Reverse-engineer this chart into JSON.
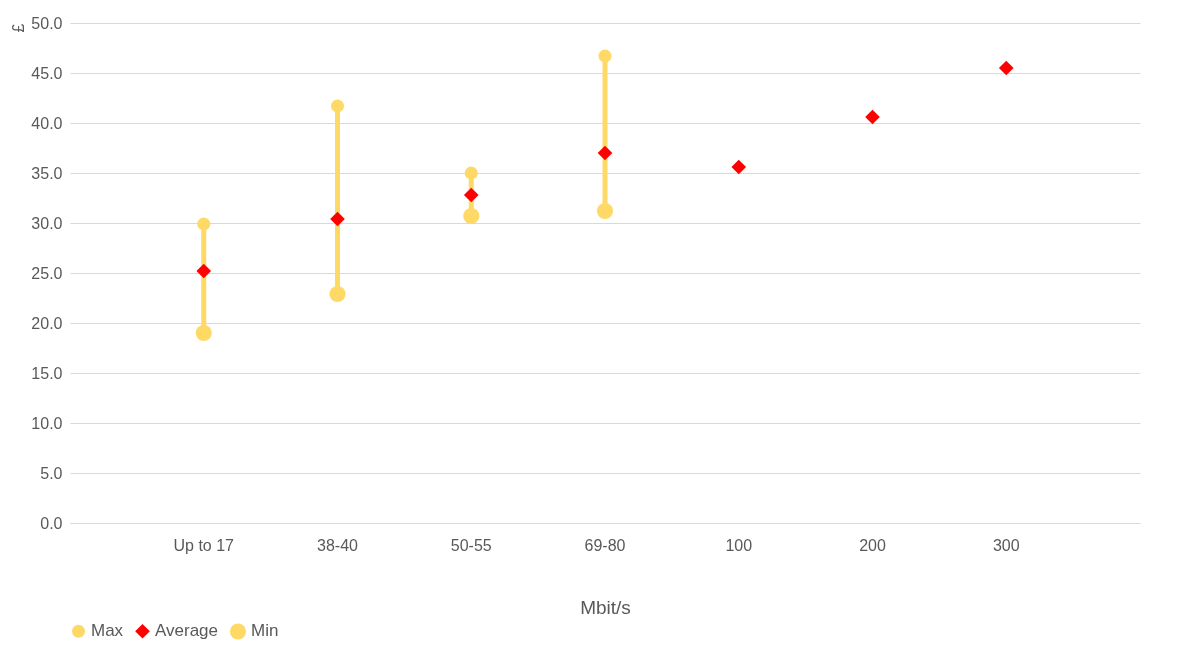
{
  "chart_data": {
    "type": "scatter",
    "xlabel": "Mbit/s",
    "ylabel": "£",
    "categories": [
      "Up to 17",
      "38-40",
      "50-55",
      "69-80",
      "100",
      "200",
      "300"
    ],
    "series": [
      {
        "name": "Max",
        "color": "#ffd966",
        "marker": "circle",
        "values": [
          29.9,
          41.7,
          35.0,
          46.7,
          null,
          null,
          null
        ]
      },
      {
        "name": "Average",
        "color": "#ff0000",
        "marker": "diamond",
        "values": [
          25.2,
          30.4,
          32.8,
          37.0,
          35.6,
          40.6,
          45.5
        ]
      },
      {
        "name": "Min",
        "color": "#ffd966",
        "marker": "circle",
        "values": [
          19.0,
          22.9,
          30.7,
          31.2,
          null,
          null,
          null
        ]
      }
    ],
    "ylim": [
      0,
      50
    ],
    "yticks": [
      {
        "value": 0,
        "label": "0.0"
      },
      {
        "value": 5,
        "label": "5.0"
      },
      {
        "value": 10,
        "label": "10.0"
      },
      {
        "value": 15,
        "label": "15.0"
      },
      {
        "value": 20,
        "label": "20.0"
      },
      {
        "value": 25,
        "label": "25.0"
      },
      {
        "value": 30,
        "label": "30.0"
      },
      {
        "value": 35,
        "label": "35.0"
      },
      {
        "value": 40,
        "label": "40.0"
      },
      {
        "value": 45,
        "label": "45.0"
      },
      {
        "value": 50,
        "label": "50.0"
      }
    ],
    "grid": "y",
    "legend": "bottom"
  }
}
